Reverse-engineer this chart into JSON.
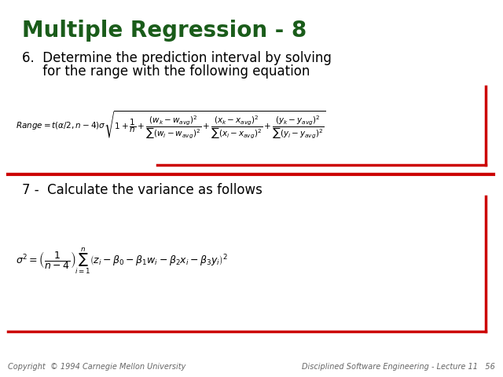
{
  "title": "Multiple Regression - 8",
  "title_color": "#1a5c1a",
  "title_fontsize": 20,
  "point6_line1": "6.  Determine the prediction interval by solving",
  "point6_line2": "     for the range with the following equation",
  "point7_text": "7 -  Calculate the variance as follows",
  "footer_left": "Copyright  © 1994 Carnegie Mellon University",
  "footer_right": "Disciplined Software Engineering - Lecture 11   56",
  "bg_color": "#ffffff",
  "text_color": "#000000",
  "body_fontsize": 12,
  "footer_fontsize": 7,
  "red_color": "#cc0000",
  "lw": 2.5
}
